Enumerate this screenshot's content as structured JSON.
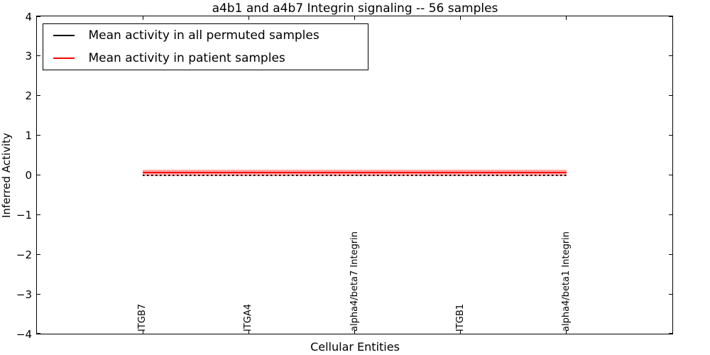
{
  "chart_data": {
    "type": "line",
    "title": "a4b1 and a4b7 Integrin signaling -- 56 samples",
    "xlabel": "Cellular Entities",
    "ylabel": "Inferred Activity",
    "ylim": [
      -4,
      4
    ],
    "yticks": [
      "4",
      "3",
      "2",
      "1",
      "0",
      "−1",
      "−2",
      "−3",
      "−4"
    ],
    "ytick_values": [
      4,
      3,
      2,
      1,
      0,
      -1,
      -2,
      -3,
      -4
    ],
    "categories": [
      "ITGB7",
      "ITGA4",
      "alpha4/beta7 Integrin",
      "ITGB1",
      "alpha4/beta1 Integrin"
    ],
    "series": [
      {
        "name": "Mean activity in all permuted samples",
        "color": "#000000",
        "line_style": "dotted",
        "values": [
          0.0,
          0.0,
          0.0,
          0.0,
          0.0
        ]
      },
      {
        "name": "Mean activity in patient samples",
        "color": "#ff0000",
        "line_style": "solid",
        "values": [
          0.06,
          0.06,
          0.06,
          0.06,
          0.06
        ]
      }
    ],
    "band": {
      "color": "rgba(255,0,0,0.33)",
      "upper": [
        0.13,
        0.13,
        0.13,
        0.13,
        0.13
      ],
      "lower": [
        -0.03,
        -0.03,
        -0.03,
        -0.03,
        -0.03
      ]
    },
    "legend_position": "upper left",
    "grid": false
  }
}
